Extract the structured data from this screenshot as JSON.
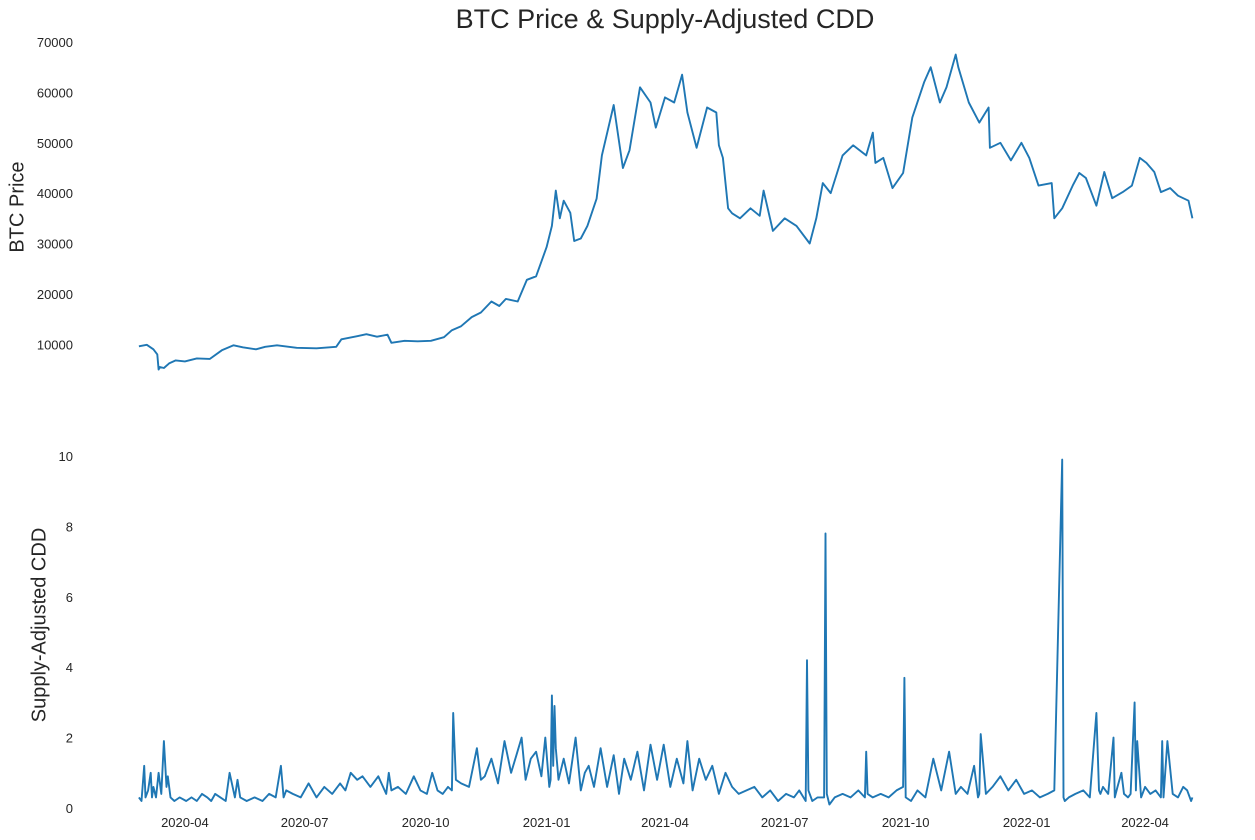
{
  "chart_data": {
    "title": "BTC Price & Supply-Adjusted CDD",
    "color": "#1f77b4",
    "panels": [
      {
        "type": "line",
        "ylabel": "BTC  Price",
        "ylim": [
          4500,
          70000
        ],
        "yticks": [
          10000,
          20000,
          30000,
          40000,
          50000,
          60000,
          70000
        ],
        "show_xticks": false,
        "series": [
          {
            "x": [
              "2020-02-26",
              "2020-03-03",
              "2020-03-08",
              "2020-03-11",
              "2020-03-12",
              "2020-03-13",
              "2020-03-16",
              "2020-03-20",
              "2020-03-25",
              "2020-04-01",
              "2020-04-10",
              "2020-04-20",
              "2020-04-29",
              "2020-05-08",
              "2020-05-15",
              "2020-05-25",
              "2020-06-01",
              "2020-06-10",
              "2020-06-25",
              "2020-07-10",
              "2020-07-25",
              "2020-07-29",
              "2020-08-10",
              "2020-08-17",
              "2020-08-25",
              "2020-09-02",
              "2020-09-05",
              "2020-09-15",
              "2020-09-25",
              "2020-10-05",
              "2020-10-15",
              "2020-10-21",
              "2020-10-28",
              "2020-11-05",
              "2020-11-12",
              "2020-11-20",
              "2020-11-26",
              "2020-12-01",
              "2020-12-10",
              "2020-12-17",
              "2020-12-24",
              "2021-01-01",
              "2021-01-05",
              "2021-01-08",
              "2021-01-11",
              "2021-01-14",
              "2021-01-19",
              "2021-01-22",
              "2021-01-27",
              "2021-02-01",
              "2021-02-08",
              "2021-02-12",
              "2021-02-21",
              "2021-02-28",
              "2021-03-05",
              "2021-03-13",
              "2021-03-21",
              "2021-03-25",
              "2021-04-01",
              "2021-04-08",
              "2021-04-14",
              "2021-04-18",
              "2021-04-25",
              "2021-05-03",
              "2021-05-10",
              "2021-05-12",
              "2021-05-15",
              "2021-05-19",
              "2021-05-22",
              "2021-05-28",
              "2021-06-05",
              "2021-06-12",
              "2021-06-15",
              "2021-06-22",
              "2021-07-01",
              "2021-07-10",
              "2021-07-20",
              "2021-07-25",
              "2021-07-30",
              "2021-08-05",
              "2021-08-14",
              "2021-08-22",
              "2021-09-01",
              "2021-09-06",
              "2021-09-08",
              "2021-09-14",
              "2021-09-21",
              "2021-09-29",
              "2021-10-06",
              "2021-10-15",
              "2021-10-20",
              "2021-10-27",
              "2021-11-01",
              "2021-11-08",
              "2021-11-10",
              "2021-11-18",
              "2021-11-26",
              "2021-12-03",
              "2021-12-04",
              "2021-12-12",
              "2021-12-20",
              "2021-12-28",
              "2022-01-03",
              "2022-01-10",
              "2022-01-20",
              "2022-01-22",
              "2022-01-28",
              "2022-02-05",
              "2022-02-10",
              "2022-02-15",
              "2022-02-23",
              "2022-03-01",
              "2022-03-07",
              "2022-03-15",
              "2022-03-22",
              "2022-03-28",
              "2022-04-02",
              "2022-04-08",
              "2022-04-13",
              "2022-04-20",
              "2022-04-26",
              "2022-04-30",
              "2022-05-04",
              "2022-05-07"
            ],
            "y": [
              9600,
              9900,
              9000,
              8000,
              5000,
              5500,
              5300,
              6200,
              6800,
              6600,
              7200,
              7100,
              8800,
              9800,
              9400,
              9000,
              9500,
              9800,
              9300,
              9200,
              9500,
              11000,
              11600,
              12000,
              11500,
              11900,
              10300,
              10700,
              10600,
              10700,
              11400,
              12800,
              13600,
              15400,
              16300,
              18500,
              17600,
              19000,
              18500,
              22800,
              23500,
              29300,
              33500,
              40500,
              35000,
              38500,
              36100,
              30500,
              31000,
              33500,
              38900,
              47500,
              57500,
              45000,
              48500,
              61000,
              58000,
              53000,
              59000,
              58000,
              63500,
              56000,
              49000,
              57000,
              56000,
              49500,
              47000,
              37000,
              36000,
              35000,
              37000,
              35500,
              40500,
              32500,
              35000,
              33500,
              30000,
              35000,
              42000,
              40000,
              47500,
              49500,
              47500,
              52000,
              46000,
              47000,
              41000,
              44000,
              55000,
              62000,
              65000,
              58000,
              61000,
              67500,
              65000,
              58000,
              54000,
              57000,
              49000,
              50000,
              46500,
              50000,
              47000,
              41500,
              42000,
              35000,
              37000,
              41500,
              44000,
              43000,
              37500,
              44200,
              39000,
              40200,
              41500,
              47000,
              46000,
              44200,
              40200,
              41000,
              39500,
              39000,
              38500,
              35000
            ]
          }
        ]
      },
      {
        "type": "line",
        "ylabel": "Supply-Adjusted CDD",
        "ylim": [
          0,
          10.4
        ],
        "yticks": [
          0,
          2,
          4,
          6,
          8,
          10
        ],
        "xticks": [
          "2020-04",
          "2020-07",
          "2020-10",
          "2021-01",
          "2021-04",
          "2021-07",
          "2021-10",
          "2022-01",
          "2022-04"
        ],
        "series": [
          {
            "x": [
              "2020-02-26",
              "2020-02-28",
              "2020-03-01",
              "2020-03-02",
              "2020-03-04",
              "2020-03-06",
              "2020-03-07",
              "2020-03-08",
              "2020-03-10",
              "2020-03-12",
              "2020-03-14",
              "2020-03-16",
              "2020-03-18",
              "2020-03-19",
              "2020-03-21",
              "2020-03-24",
              "2020-03-28",
              "2020-04-02",
              "2020-04-06",
              "2020-04-10",
              "2020-04-14",
              "2020-04-18",
              "2020-04-21",
              "2020-04-24",
              "2020-04-28",
              "2020-05-02",
              "2020-05-05",
              "2020-05-09",
              "2020-05-11",
              "2020-05-13",
              "2020-05-18",
              "2020-05-24",
              "2020-05-30",
              "2020-06-04",
              "2020-06-09",
              "2020-06-13",
              "2020-06-15",
              "2020-06-17",
              "2020-06-22",
              "2020-06-28",
              "2020-07-04",
              "2020-07-10",
              "2020-07-16",
              "2020-07-22",
              "2020-07-28",
              "2020-08-01",
              "2020-08-05",
              "2020-08-10",
              "2020-08-14",
              "2020-08-20",
              "2020-08-26",
              "2020-09-01",
              "2020-09-03",
              "2020-09-05",
              "2020-09-10",
              "2020-09-16",
              "2020-09-22",
              "2020-09-27",
              "2020-10-02",
              "2020-10-06",
              "2020-10-10",
              "2020-10-14",
              "2020-10-18",
              "2020-10-21",
              "2020-10-22",
              "2020-10-24",
              "2020-10-28",
              "2020-11-03",
              "2020-11-09",
              "2020-11-12",
              "2020-11-15",
              "2020-11-20",
              "2020-11-25",
              "2020-11-30",
              "2020-12-05",
              "2020-12-09",
              "2020-12-13",
              "2020-12-16",
              "2020-12-20",
              "2020-12-24",
              "2020-12-28",
              "2020-12-31",
              "2021-01-03",
              "2021-01-04",
              "2021-01-05",
              "2021-01-06",
              "2021-01-07",
              "2021-01-08",
              "2021-01-10",
              "2021-01-14",
              "2021-01-18",
              "2021-01-23",
              "2021-01-27",
              "2021-01-30",
              "2021-02-02",
              "2021-02-06",
              "2021-02-11",
              "2021-02-16",
              "2021-02-21",
              "2021-02-25",
              "2021-03-01",
              "2021-03-06",
              "2021-03-11",
              "2021-03-16",
              "2021-03-21",
              "2021-03-26",
              "2021-03-31",
              "2021-04-05",
              "2021-04-10",
              "2021-04-15",
              "2021-04-18",
              "2021-04-22",
              "2021-04-27",
              "2021-05-02",
              "2021-05-07",
              "2021-05-12",
              "2021-05-17",
              "2021-05-22",
              "2021-05-27",
              "2021-06-02",
              "2021-06-08",
              "2021-06-14",
              "2021-06-20",
              "2021-06-26",
              "2021-07-02",
              "2021-07-08",
              "2021-07-12",
              "2021-07-17",
              "2021-07-18",
              "2021-07-19",
              "2021-07-22",
              "2021-07-26",
              "2021-07-31",
              "2021-08-01",
              "2021-08-02",
              "2021-08-04",
              "2021-08-08",
              "2021-08-14",
              "2021-08-20",
              "2021-08-26",
              "2021-08-31",
              "2021-09-01",
              "2021-09-02",
              "2021-09-06",
              "2021-09-12",
              "2021-09-18",
              "2021-09-24",
              "2021-09-29",
              "2021-09-30",
              "2021-10-01",
              "2021-10-05",
              "2021-10-10",
              "2021-10-16",
              "2021-10-22",
              "2021-10-28",
              "2021-11-03",
              "2021-11-08",
              "2021-11-12",
              "2021-11-17",
              "2021-11-22",
              "2021-11-25",
              "2021-11-26",
              "2021-11-27",
              "2021-12-01",
              "2021-12-06",
              "2021-12-12",
              "2021-12-18",
              "2021-12-24",
              "2021-12-30",
              "2022-01-05",
              "2022-01-11",
              "2022-01-17",
              "2022-01-22",
              "2022-01-28",
              "2022-01-29",
              "2022-01-30",
              "2022-02-02",
              "2022-02-07",
              "2022-02-13",
              "2022-02-18",
              "2022-02-23",
              "2022-02-25",
              "2022-02-26",
              "2022-02-28",
              "2022-03-04",
              "2022-03-08",
              "2022-03-09",
              "2022-03-11",
              "2022-03-14",
              "2022-03-16",
              "2022-03-19",
              "2022-03-21",
              "2022-03-24",
              "2022-03-25",
              "2022-03-26",
              "2022-03-29",
              "2022-04-01",
              "2022-04-05",
              "2022-04-09",
              "2022-04-13",
              "2022-04-14",
              "2022-04-15",
              "2022-04-18",
              "2022-04-22",
              "2022-04-26",
              "2022-04-30",
              "2022-05-03",
              "2022-05-06",
              "2022-05-07"
            ],
            "y": [
              0.3,
              0.2,
              1.2,
              0.3,
              0.5,
              1.0,
              0.3,
              0.6,
              0.3,
              1.0,
              0.4,
              1.9,
              0.6,
              0.9,
              0.3,
              0.2,
              0.3,
              0.2,
              0.3,
              0.2,
              0.4,
              0.3,
              0.2,
              0.4,
              0.3,
              0.2,
              1.0,
              0.3,
              0.8,
              0.3,
              0.2,
              0.3,
              0.2,
              0.4,
              0.3,
              1.2,
              0.3,
              0.5,
              0.4,
              0.3,
              0.7,
              0.3,
              0.6,
              0.4,
              0.7,
              0.5,
              1.0,
              0.8,
              0.9,
              0.6,
              0.9,
              0.4,
              1.0,
              0.5,
              0.6,
              0.4,
              0.9,
              0.5,
              0.4,
              1.0,
              0.5,
              0.4,
              0.6,
              0.5,
              2.7,
              0.8,
              0.7,
              0.6,
              1.7,
              0.8,
              0.9,
              1.4,
              0.7,
              1.9,
              1.0,
              1.5,
              2.0,
              0.8,
              1.4,
              1.6,
              0.9,
              2.0,
              0.6,
              0.8,
              3.2,
              1.2,
              2.9,
              1.7,
              0.8,
              1.4,
              0.7,
              2.0,
              0.5,
              1.0,
              1.2,
              0.6,
              1.7,
              0.6,
              1.5,
              0.4,
              1.4,
              0.8,
              1.6,
              0.5,
              1.8,
              0.8,
              1.8,
              0.6,
              1.4,
              0.7,
              1.9,
              0.5,
              1.4,
              0.8,
              1.2,
              0.4,
              1.0,
              0.6,
              0.4,
              0.5,
              0.6,
              0.3,
              0.5,
              0.2,
              0.4,
              0.3,
              0.5,
              0.2,
              4.2,
              0.5,
              0.2,
              0.3,
              0.3,
              7.8,
              0.4,
              0.1,
              0.3,
              0.4,
              0.3,
              0.5,
              0.3,
              1.6,
              0.4,
              0.3,
              0.4,
              0.3,
              0.5,
              0.6,
              3.7,
              0.3,
              0.2,
              0.5,
              0.3,
              1.4,
              0.5,
              1.6,
              0.4,
              0.6,
              0.4,
              1.2,
              0.3,
              0.4,
              2.1,
              0.4,
              0.6,
              0.9,
              0.5,
              0.8,
              0.4,
              0.5,
              0.3,
              0.4,
              0.5,
              9.9,
              0.3,
              0.2,
              0.3,
              0.4,
              0.5,
              0.3,
              2.7,
              0.5,
              0.4,
              0.6,
              0.4,
              2.0,
              0.3,
              0.6,
              1.0,
              0.4,
              0.3,
              0.4,
              3.0,
              0.5,
              1.9,
              0.3,
              0.6,
              0.4,
              0.5,
              0.3,
              1.9,
              0.3,
              1.9,
              0.4,
              0.3,
              0.6,
              0.5,
              0.2,
              0.3
            ]
          }
        ]
      }
    ]
  }
}
